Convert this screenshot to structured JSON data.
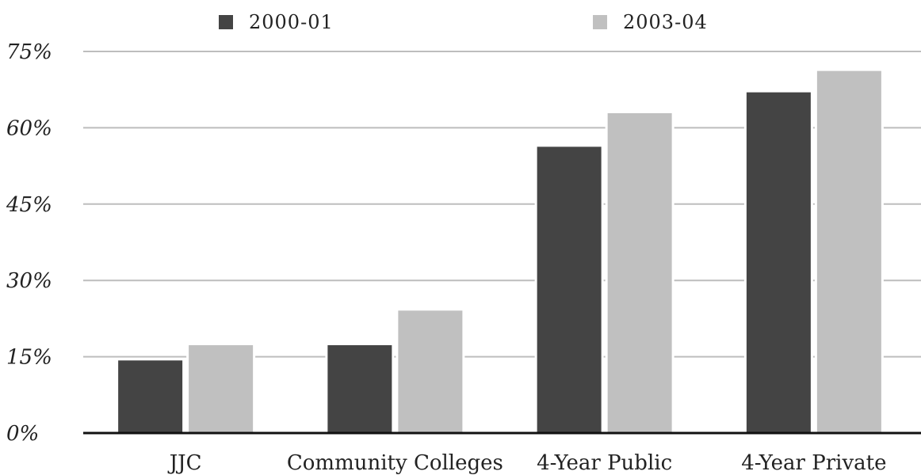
{
  "chart_data": {
    "type": "bar",
    "categories": [
      "JJC",
      "Community Colleges",
      "4-Year Public",
      "4-Year Private"
    ],
    "series": [
      {
        "name": "2000-01",
        "color": "#444444",
        "values": [
          14.5,
          17.5,
          56.5,
          67.2
        ]
      },
      {
        "name": "2003-04",
        "color": "#c0c0c0",
        "values": [
          17.5,
          24.3,
          63.1,
          71.4
        ]
      }
    ],
    "y_ticks": [
      {
        "value": 0,
        "label": "0%"
      },
      {
        "value": 15,
        "label": "15%"
      },
      {
        "value": 30,
        "label": "30%"
      },
      {
        "value": 45,
        "label": "45%"
      },
      {
        "value": 60,
        "label": "60%"
      },
      {
        "value": 75,
        "label": "75%"
      }
    ],
    "ylim": [
      0,
      75
    ],
    "grid": true,
    "legend_position": "top",
    "title": "",
    "xlabel": "",
    "ylabel": ""
  }
}
